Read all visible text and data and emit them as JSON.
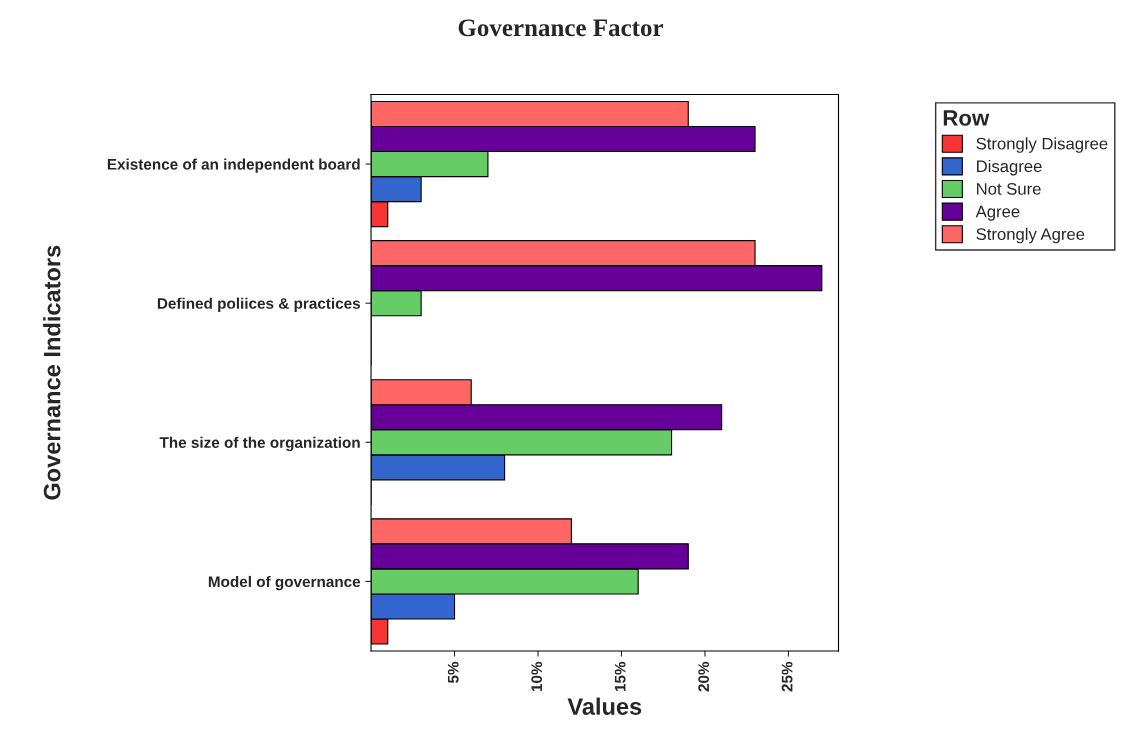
{
  "chart_data": {
    "type": "bar",
    "orientation": "horizontal",
    "title": "Governance Factor",
    "xlabel": "Values",
    "ylabel": "Governance Indicators",
    "legend_title": "Row",
    "legend": "top right",
    "categories": [
      "Existence of an independent board",
      "Defined poliices & practices",
      "The size of the organization",
      "Model of governance"
    ],
    "series": [
      {
        "name": "Strongly Disagree",
        "color": "#f93434",
        "values": [
          1,
          0,
          0,
          1
        ]
      },
      {
        "name": "Disagree",
        "color": "#3366cc",
        "values": [
          3,
          0,
          8,
          5
        ]
      },
      {
        "name": "Not Sure",
        "color": "#66cc66",
        "values": [
          7,
          3,
          18,
          16
        ]
      },
      {
        "name": "Agree",
        "color": "#660099",
        "values": [
          23,
          27,
          21,
          19
        ]
      },
      {
        "name": "Strongly Agree",
        "color": "#ff6666",
        "values": [
          19,
          23,
          6,
          12
        ]
      }
    ],
    "xlim": [
      0,
      28
    ],
    "xticks": [
      {
        "value": 5,
        "label": "5%"
      },
      {
        "value": 10,
        "label": "10%"
      },
      {
        "value": 15,
        "label": "15%"
      },
      {
        "value": 20,
        "label": "20%"
      },
      {
        "value": 25,
        "label": "25%"
      }
    ],
    "grid": false
  }
}
